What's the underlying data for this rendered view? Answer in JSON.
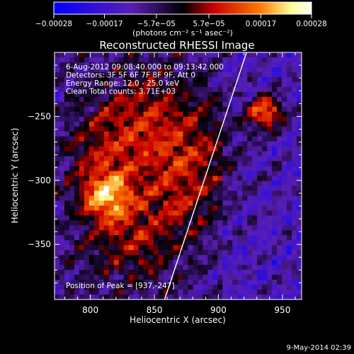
{
  "chart_data": {
    "type": "heatmap",
    "title": "Reconstructed RHESSI Image",
    "xlabel": "Heliocentric X (arcsec)",
    "ylabel": "Heliocentric Y (arcsec)",
    "xlim": [
      772,
      965
    ],
    "ylim": [
      -393,
      -200
    ],
    "x_ticks": [
      800,
      850,
      900,
      950
    ],
    "y_ticks": [
      -250,
      -300,
      -350
    ],
    "colorbar": {
      "label": "(photons cm⁻² s⁻¹ asec⁻²)",
      "range": [
        -0.00028,
        0.00028
      ],
      "ticks": [
        "−0.00028",
        "−0.00017",
        "−5.7e−05",
        "5.7e−05",
        "0.00017",
        "0.00028"
      ],
      "colormap": [
        "#0000ff",
        "#5a1eb4",
        "#000000",
        "#c80000",
        "#ff7800",
        "#ffff96",
        "#ffffff"
      ]
    },
    "annotations": [
      "6-Aug-2012 09:08:40.000 to 09:13:42.000",
      "Detectors: 3F 5F 6F 7F 8F 9F, Att 0",
      "Energy Range: 12.0 - 25.0 keV",
      "Clean    Total counts: 3.71E+03"
    ],
    "peak_label": "Position of Peak = [937,-247]",
    "peaks": [
      {
        "x": 937,
        "y": -247,
        "rel_value": 1.0
      },
      {
        "x": 812,
        "y": -313,
        "rel_value": 0.98
      }
    ],
    "limb_line": {
      "x1": 922,
      "y1": -200,
      "x2": 858,
      "y2": -393
    }
  },
  "footer": {
    "date": "9-May-2014 02:39"
  }
}
